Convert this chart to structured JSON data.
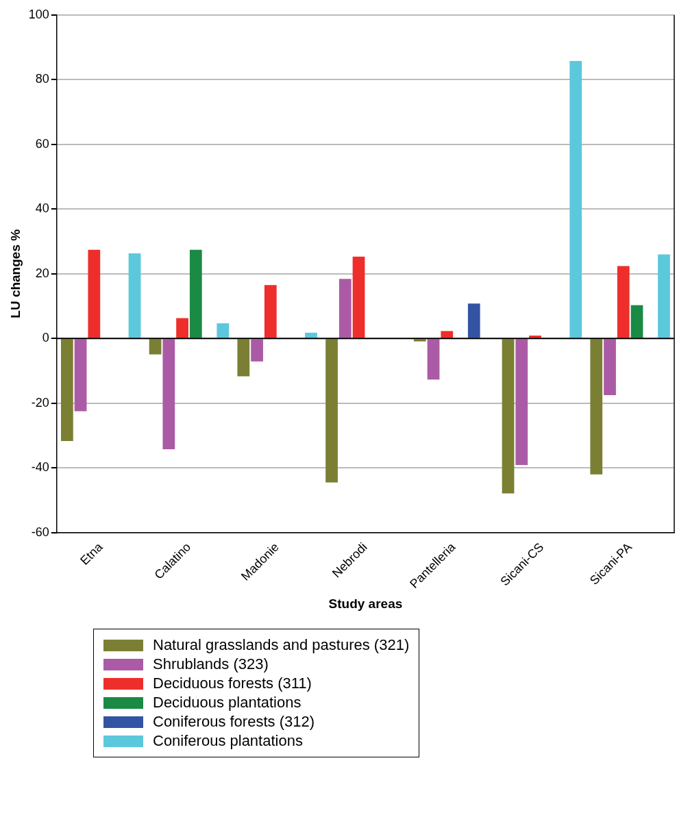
{
  "chart_data": {
    "type": "bar",
    "xlabel": "Study areas",
    "ylabel": "LU changes %",
    "categories": [
      "Etna",
      "Calatino",
      "Madonie",
      "Nebrodi",
      "Pantelleria",
      "Sicani-CS",
      "Sicani-PA"
    ],
    "series": [
      {
        "name": "Natural grasslands and pastures (321)",
        "color": "#7b7f33",
        "values": [
          -31.7,
          -4.9,
          -11.7,
          -44.5,
          -0.9,
          -47.9,
          -42
        ]
      },
      {
        "name": "Shrublands (323)",
        "color": "#ab5ba5",
        "values": [
          -22.5,
          -34.2,
          -7.1,
          18.4,
          -12.7,
          -39.1,
          -17.5
        ]
      },
      {
        "name": "Deciduous forests (311)",
        "color": "#ee2e2b",
        "values": [
          27.4,
          6.3,
          16.5,
          25.3,
          2.3,
          0.9,
          22.4
        ]
      },
      {
        "name": "Deciduous plantations",
        "color": "#1a8a45",
        "values": [
          null,
          27.4,
          null,
          null,
          null,
          null,
          10.3
        ]
      },
      {
        "name": "Coniferous forests (312)",
        "color": "#3353a3",
        "values": [
          null,
          null,
          null,
          null,
          10.8,
          null,
          null
        ]
      },
      {
        "name": "Coniferous plantations",
        "color": "#5cc8dc",
        "values": [
          26.3,
          4.7,
          1.8,
          null,
          null,
          85.8,
          26
        ]
      }
    ],
    "ylim": [
      -60,
      100
    ],
    "yticks": [
      -60,
      -40,
      -20,
      0,
      20,
      40,
      60,
      80,
      100
    ],
    "grid": "y",
    "legend": "bottom"
  }
}
